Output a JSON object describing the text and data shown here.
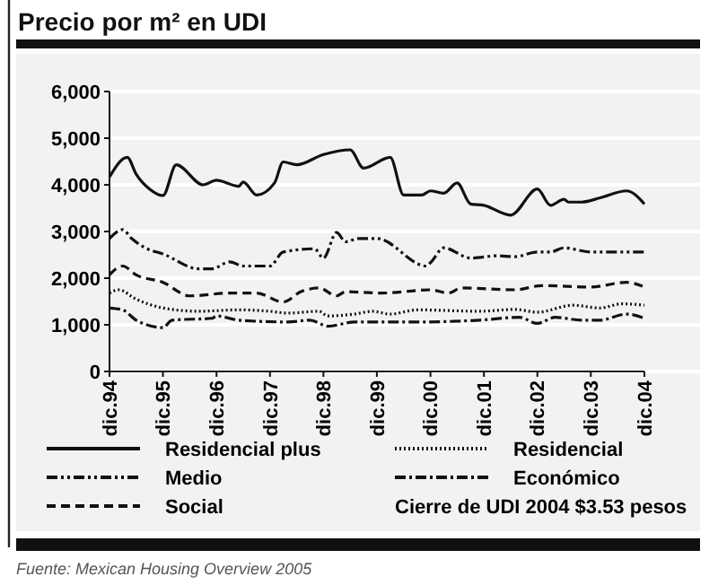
{
  "chart_data": {
    "type": "line",
    "title": "Precio por m² en UDI",
    "xlim": [
      "1994-12",
      "2004-12"
    ],
    "xticks": [
      {
        "value": "1994-12",
        "label": "dic.94"
      },
      {
        "value": "1995-12",
        "label": "dic.95"
      },
      {
        "value": "1996-12",
        "label": "dic.96"
      },
      {
        "value": "1997-12",
        "label": "dic.97"
      },
      {
        "value": "1998-12",
        "label": "dic.98"
      },
      {
        "value": "1999-12",
        "label": "dic.99"
      },
      {
        "value": "2000-12",
        "label": "dic.00"
      },
      {
        "value": "2001-12",
        "label": "dic.01"
      },
      {
        "value": "2002-12",
        "label": "dic.02"
      },
      {
        "value": "2003-12",
        "label": "dic.03"
      },
      {
        "value": "2004-12",
        "label": "dic.04"
      }
    ],
    "ylim": [
      0,
      6000
    ],
    "yticks": [
      {
        "value": 0,
        "label": "0"
      },
      {
        "value": 1000,
        "label": "1,000"
      },
      {
        "value": 2000,
        "label": "2,000"
      },
      {
        "value": 3000,
        "label": "3,000"
      },
      {
        "value": 4000,
        "label": "4,000"
      },
      {
        "value": 5000,
        "label": "5,000"
      },
      {
        "value": 6000,
        "label": "6,000"
      }
    ],
    "grid": "y",
    "legend": "bottom",
    "marker": "none",
    "series": [
      {
        "name": "Residencial plus",
        "color": "#111111",
        "line_style": "solid",
        "x": [
          "1994-12",
          "1995-04",
          "1995-06",
          "1995-09",
          "1995-12",
          "1996-03",
          "1996-09",
          "1996-12",
          "1997-05",
          "1997-06",
          "1997-09",
          "1998-01",
          "1998-03",
          "1998-06",
          "1998-12",
          "1999-06",
          "1999-09",
          "2000-03",
          "2000-06",
          "2000-10",
          "2000-12",
          "2001-03",
          "2001-06",
          "2001-09",
          "2001-12",
          "2002-06",
          "2002-12",
          "2003-03",
          "2003-06",
          "2003-07",
          "2003-10",
          "2004-02",
          "2004-08",
          "2004-12"
        ],
        "values": [
          4170,
          4590,
          4230,
          3910,
          3770,
          4430,
          4000,
          4100,
          3970,
          4060,
          3780,
          4040,
          4490,
          4430,
          4650,
          4750,
          4360,
          4590,
          3780,
          3780,
          3870,
          3820,
          4040,
          3590,
          3560,
          3350,
          3910,
          3560,
          3690,
          3630,
          3630,
          3720,
          3870,
          3590
        ]
      },
      {
        "name": "Residencial",
        "color": "#111111",
        "line_style": "dotted",
        "x": [
          "1994-12",
          "1995-02",
          "1995-06",
          "1995-12",
          "1996-08",
          "1997-05",
          "1997-12",
          "1998-04",
          "1998-11",
          "1999-01",
          "1999-07",
          "1999-11",
          "2000-03",
          "2000-09",
          "2001-11",
          "2002-07",
          "2002-12",
          "2003-08",
          "2004-02",
          "2004-07",
          "2004-12"
        ],
        "values": [
          1680,
          1750,
          1550,
          1360,
          1290,
          1320,
          1290,
          1250,
          1290,
          1190,
          1230,
          1290,
          1230,
          1320,
          1290,
          1330,
          1270,
          1420,
          1360,
          1450,
          1420
        ]
      },
      {
        "name": "Medio",
        "color": "#111111",
        "line_style": "dashdotdot",
        "x": [
          "1994-12",
          "1995-03",
          "1995-05",
          "1995-08",
          "1995-12",
          "1996-08",
          "1996-11",
          "1997-03",
          "1997-06",
          "1997-12",
          "1998-03",
          "1998-10",
          "1998-12",
          "1999-03",
          "1999-05",
          "1999-08",
          "1999-12",
          "2000-11",
          "2000-12",
          "2001-03",
          "2001-09",
          "2002-03",
          "2002-07",
          "2002-12",
          "2003-03",
          "2003-06",
          "2003-12",
          "2004-12"
        ],
        "values": [
          2850,
          3040,
          2850,
          2650,
          2520,
          2200,
          2200,
          2350,
          2260,
          2260,
          2560,
          2630,
          2430,
          2980,
          2780,
          2850,
          2850,
          2260,
          2330,
          2650,
          2430,
          2480,
          2460,
          2560,
          2560,
          2650,
          2560,
          2560
        ]
      },
      {
        "name": "Económico",
        "color": "#111111",
        "line_style": "dashdot",
        "x": [
          "1994-12",
          "1995-03",
          "1995-06",
          "1995-12",
          "1996-02",
          "1996-11",
          "1996-12",
          "1997-05",
          "1998-04",
          "1998-09",
          "1999-01",
          "1999-07",
          "2000-09",
          "2001-11",
          "2002-08",
          "2002-12",
          "2003-04",
          "2003-10",
          "2004-02",
          "2004-08",
          "2004-12"
        ],
        "values": [
          1360,
          1320,
          1100,
          940,
          1100,
          1140,
          1190,
          1100,
          1060,
          1100,
          970,
          1060,
          1060,
          1100,
          1160,
          1030,
          1160,
          1100,
          1100,
          1230,
          1140
        ]
      },
      {
        "name": "Social",
        "color": "#111111",
        "line_style": "dashed",
        "x": [
          "1994-12",
          "1995-03",
          "1995-06",
          "1995-12",
          "1996-06",
          "1997-03",
          "1997-09",
          "1998-03",
          "1998-07",
          "1998-11",
          "1999-03",
          "1999-05",
          "2000-01",
          "2000-12",
          "2001-04",
          "2001-07",
          "2002-07",
          "2003-01",
          "2003-12",
          "2004-08",
          "2004-12"
        ],
        "values": [
          2070,
          2260,
          2070,
          1910,
          1620,
          1680,
          1680,
          1490,
          1710,
          1790,
          1620,
          1710,
          1680,
          1750,
          1680,
          1790,
          1750,
          1840,
          1810,
          1910,
          1810
        ]
      }
    ],
    "annotations": [
      "Cierre de UDI 2004 $3.53 pesos",
      "Fuente: Mexican Housing Overview 2005"
    ]
  }
}
